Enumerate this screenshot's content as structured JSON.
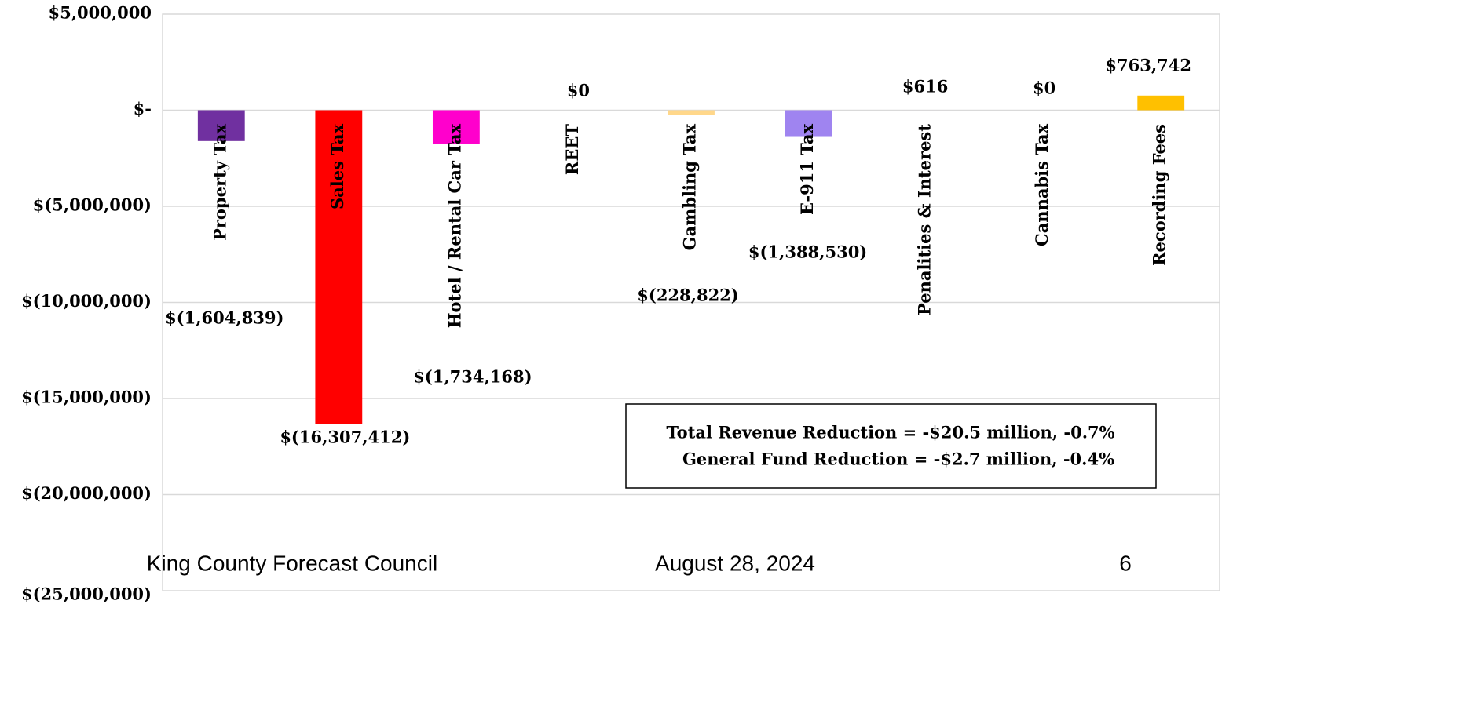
{
  "chart_data": {
    "type": "bar",
    "categories": [
      "Property Tax",
      "Sales Tax",
      "Hotel / Rental Car Tax",
      "REET",
      "Gambling Tax",
      "E-911 Tax",
      "Penalities & Interest",
      "Cannabis Tax",
      "Recording Fees"
    ],
    "values": [
      -1604839,
      -16307412,
      -1734168,
      0,
      -228822,
      -1388530,
      616,
      0,
      763742
    ],
    "value_labels": [
      "$(1,604,839)",
      "$(16,307,412)",
      "$(1,734,168)",
      "$0",
      "$(228,822)",
      "$(1,388,530)",
      "$616",
      "$0",
      "$763,742"
    ],
    "colors": [
      "#7030a0",
      "#ff0000",
      "#ff00cc",
      "#a6a6a6",
      "#ffd78a",
      "#9f84f0",
      "#c9a0dc",
      "#70ad47",
      "#ffc000"
    ],
    "ylim": [
      -25000000,
      5000000
    ],
    "yticks": [
      {
        "value": 5000000,
        "label": "$5,000,000"
      },
      {
        "value": 0,
        "label": "$-"
      },
      {
        "value": -5000000,
        "label": "$(5,000,000)"
      },
      {
        "value": -10000000,
        "label": "$(10,000,000)"
      },
      {
        "value": -15000000,
        "label": "$(15,000,000)"
      },
      {
        "value": -20000000,
        "label": "$(20,000,000)"
      },
      {
        "value": -25000000,
        "label": "$(25,000,000)"
      }
    ],
    "grid": true,
    "annotations": [
      "Total Revenue Reduction = -$20.5 million, -0.7%",
      "General Fund Reduction = -$2.7 million, -0.4%"
    ]
  },
  "footer": {
    "left": "King County Forecast Council",
    "center": "August 28, 2024",
    "right": "6"
  }
}
